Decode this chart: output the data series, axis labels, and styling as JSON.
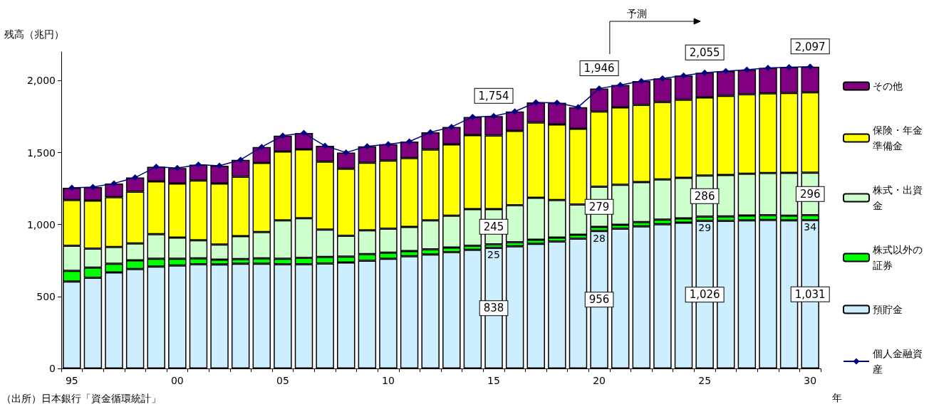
{
  "chart_data": {
    "type": "bar",
    "stacked": true,
    "ylabel": "残高（兆円）",
    "xlabel": "年",
    "annotations": [
      "予測",
      "（出所）日本銀行「資金循環統計」"
    ],
    "categories": [
      "95",
      null,
      null,
      null,
      null,
      "00",
      null,
      null,
      null,
      null,
      "05",
      null,
      null,
      null,
      null,
      "10",
      null,
      null,
      null,
      null,
      "15",
      null,
      null,
      null,
      null,
      "20",
      null,
      null,
      null,
      null,
      "25",
      null,
      null,
      null,
      null,
      "30"
    ],
    "ylim": [
      0,
      2200
    ],
    "yticks": [
      0,
      500,
      {
        "value": 1000,
        "label": "1,000"
      },
      {
        "value": 1500,
        "label": "1,500"
      },
      {
        "value": 2000,
        "label": "2,000"
      }
    ],
    "grid": false,
    "legend": "right",
    "marker": "diamond",
    "line_style": "solid",
    "series": [
      {
        "name": "預貯金",
        "color": "#cceeff",
        "values": [
          604,
          630,
          667,
          691,
          708,
          716,
          724,
          723,
          728,
          728,
          724,
          724,
          729,
          737,
          749,
          762,
          780,
          792,
          808,
          825,
          838,
          849,
          866,
          882,
          902,
          956,
          971,
          988,
          1002,
          1014,
          1026,
          1026,
          1030,
          1032,
          1029,
          1031
        ],
        "value_labels": [
          null,
          null,
          null,
          null,
          null,
          null,
          null,
          null,
          null,
          null,
          null,
          null,
          null,
          null,
          null,
          null,
          null,
          null,
          null,
          null,
          "838",
          null,
          null,
          null,
          null,
          "956",
          null,
          null,
          null,
          null,
          "1,026",
          null,
          null,
          null,
          null,
          "1,031"
        ]
      },
      {
        "name": "株式以外の証券",
        "color": "#00ff00",
        "values": [
          74,
          71,
          61,
          60,
          54,
          46,
          41,
          34,
          32,
          37,
          38,
          45,
          46,
          40,
          46,
          43,
          36,
          36,
          32,
          28,
          25,
          28,
          29,
          28,
          27,
          28,
          28,
          29,
          32,
          29,
          29,
          31,
          33,
          33,
          33,
          34
        ],
        "value_labels": [
          null,
          null,
          null,
          null,
          null,
          null,
          null,
          null,
          null,
          null,
          null,
          null,
          null,
          null,
          null,
          null,
          null,
          null,
          null,
          null,
          "25",
          null,
          null,
          null,
          null,
          "28",
          null,
          null,
          null,
          null,
          "29",
          null,
          null,
          null,
          null,
          "34"
        ]
      },
      {
        "name": "株式・出資金",
        "color": "#ccffcc",
        "values": [
          175,
          132,
          116,
          118,
          171,
          148,
          126,
          105,
          160,
          183,
          267,
          275,
          190,
          145,
          165,
          166,
          168,
          201,
          222,
          255,
          245,
          257,
          292,
          261,
          211,
          279,
          278,
          278,
          280,
          282,
          286,
          288,
          290,
          293,
          298,
          296
        ],
        "value_labels": [
          null,
          null,
          null,
          null,
          null,
          null,
          null,
          null,
          null,
          null,
          null,
          null,
          null,
          null,
          null,
          null,
          null,
          null,
          null,
          null,
          "245",
          null,
          null,
          null,
          null,
          "279",
          null,
          null,
          null,
          null,
          "286",
          null,
          null,
          null,
          null,
          "296"
        ]
      },
      {
        "name": "保険・年金準備金",
        "color": "#ffff00",
        "values": [
          317,
          334,
          346,
          359,
          367,
          376,
          416,
          424,
          412,
          481,
          479,
          479,
          472,
          466,
          470,
          474,
          478,
          492,
          495,
          513,
          511,
          517,
          522,
          525,
          526,
          523,
          537,
          537,
          538,
          543,
          542,
          550,
          553,
          554,
          555,
          558
        ]
      },
      {
        "name": "その他",
        "color": "#800080",
        "values": [
          86,
          94,
          96,
          99,
          101,
          107,
          109,
          123,
          118,
          110,
          110,
          113,
          110,
          113,
          114,
          114,
          115,
          120,
          122,
          127,
          135,
          135,
          140,
          151,
          150,
          160,
          156,
          165,
          164,
          168,
          172,
          172,
          171,
          177,
          179,
          178
        ]
      },
      {
        "name": "個人金融資産",
        "type": "line",
        "color": "#000080",
        "values": [
          1256,
          1261,
          1286,
          1327,
          1401,
          1393,
          1416,
          1409,
          1450,
          1539,
          1618,
          1636,
          1547,
          1501,
          1544,
          1559,
          1577,
          1641,
          1679,
          1748,
          1754,
          1786,
          1849,
          1847,
          1816,
          1946,
          1970,
          1997,
          2016,
          2036,
          2055,
          2067,
          2077,
          2089,
          2094,
          2097
        ],
        "value_labels": [
          null,
          null,
          null,
          null,
          null,
          null,
          null,
          null,
          null,
          null,
          null,
          null,
          null,
          null,
          null,
          null,
          null,
          null,
          null,
          null,
          "1,754",
          null,
          null,
          null,
          null,
          "1,946",
          null,
          null,
          null,
          null,
          "2,055",
          null,
          null,
          null,
          null,
          "2,097"
        ]
      }
    ]
  }
}
